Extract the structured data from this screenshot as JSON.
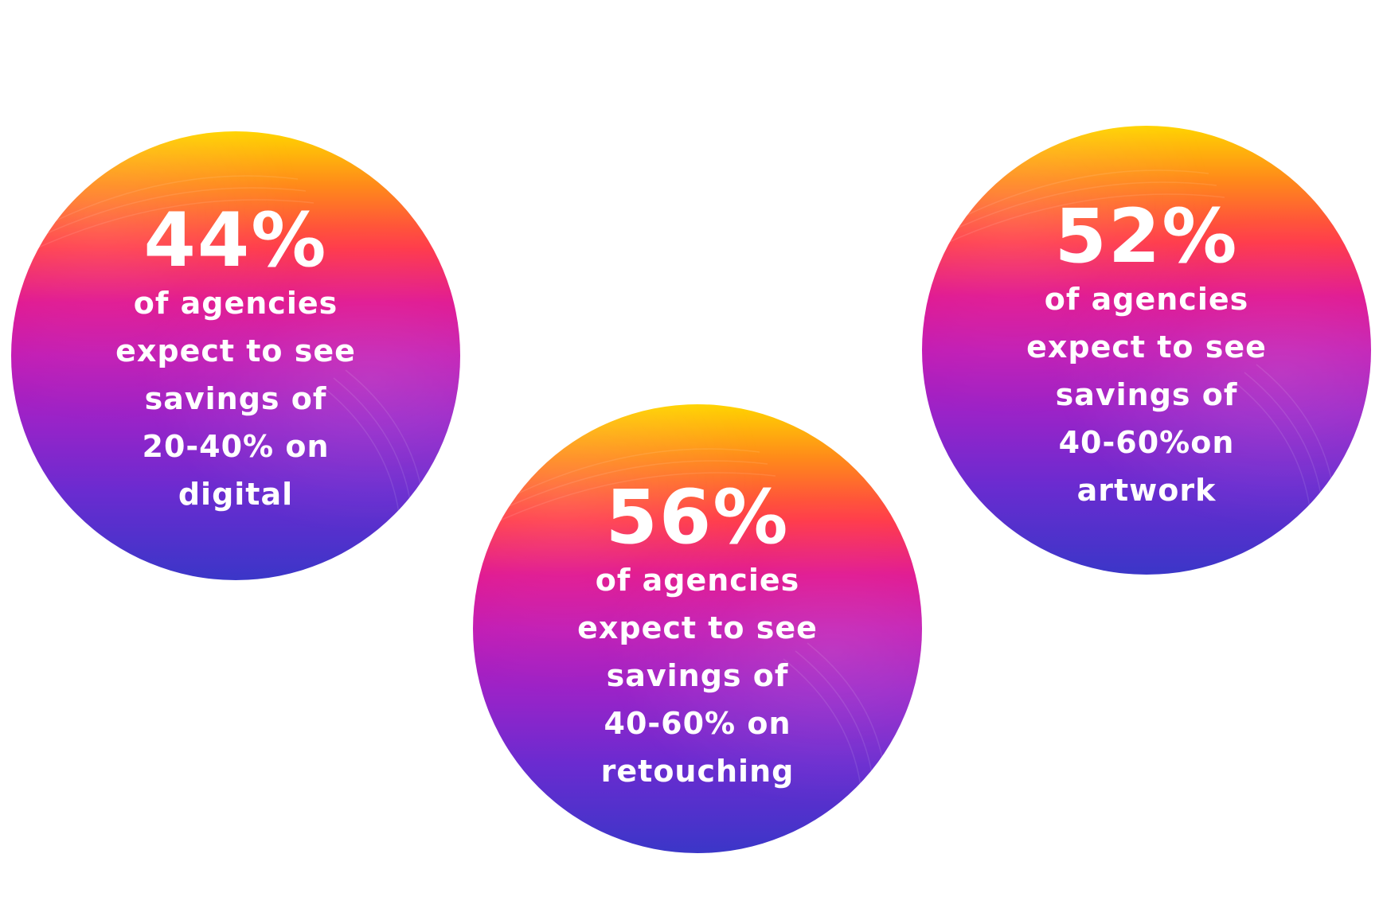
{
  "stats": [
    {
      "value": "44%",
      "description": "of agencies\nexpect to see\nsavings of\n20-40% on\ndigital"
    },
    {
      "value": "56%",
      "description": "of agencies\nexpect to see\nsavings of\n40-60% on\nretouching"
    },
    {
      "value": "52%",
      "description": "of agencies\nexpect to see\nsavings of\n40-60%on\nartwork"
    }
  ],
  "colors": {
    "background": "#ffffff",
    "gradient_top": "#ffd400",
    "gradient_mid": "#e0128f",
    "gradient_bottom": "#3b36c8",
    "text": "#ffffff"
  }
}
